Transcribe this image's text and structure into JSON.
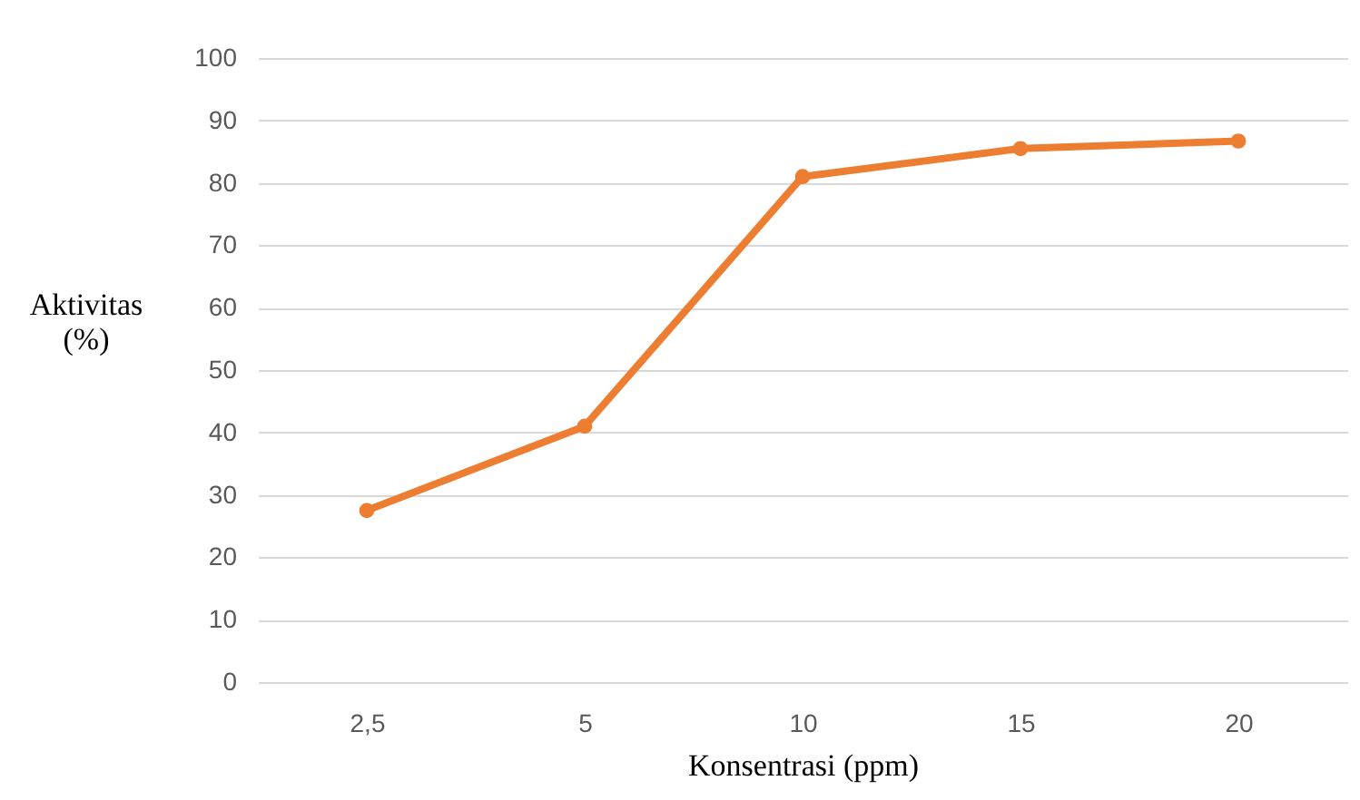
{
  "chart_data": {
    "type": "line",
    "xlabel": "Konsentrasi (ppm)",
    "ylabel": "Aktivitas (%)",
    "categories": [
      "2,5",
      "5",
      "10",
      "15",
      "20"
    ],
    "series": [
      {
        "color": "#ed7d31",
        "values": [
          27.5,
          41,
          81,
          85.5,
          86.7
        ]
      }
    ],
    "ylim": [
      0,
      100
    ],
    "yticks": [
      0,
      10,
      20,
      30,
      40,
      50,
      60,
      70,
      80,
      90,
      100
    ],
    "grid": "y",
    "legend": false,
    "marker": "circle",
    "line_style": "solid"
  }
}
